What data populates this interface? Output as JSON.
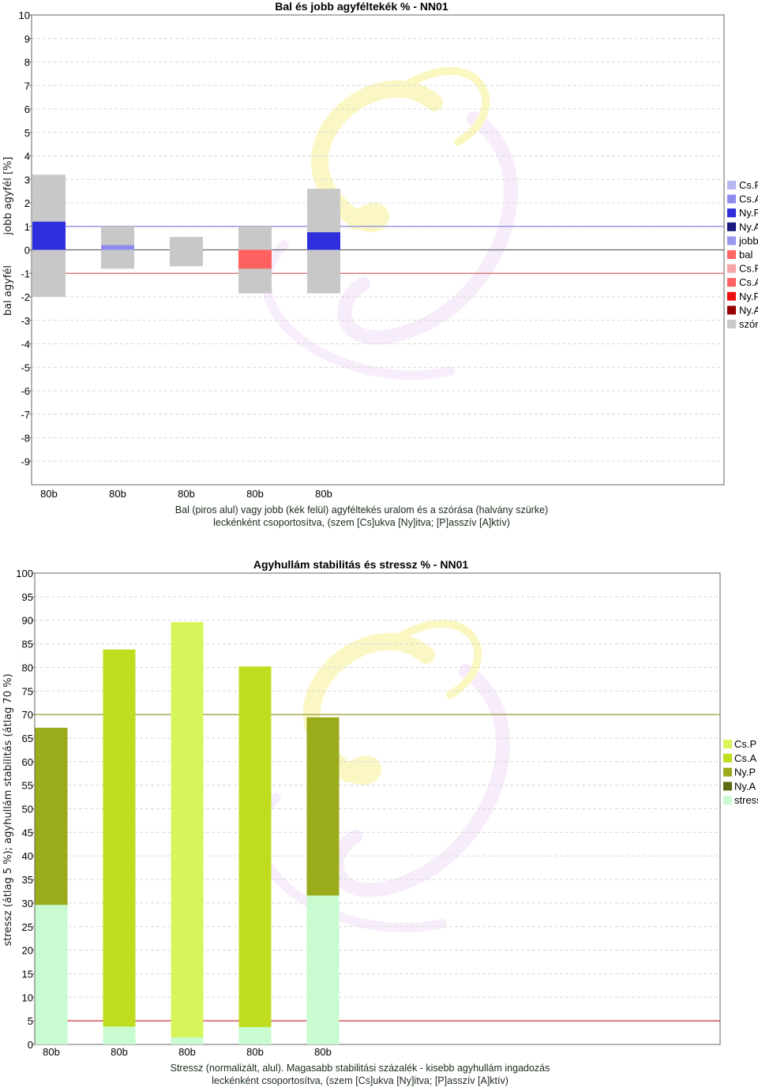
{
  "chart_data": [
    {
      "type": "bar",
      "title": "Bal és jobb agyféltekék % - NN01",
      "ylabel_top": "jobb agyfél [%]",
      "ylabel_bottom": "bal agyfél",
      "caption_line1": "Bal (piros alul) vagy jobb (kék felül) agyféltekés uralom és a szórása (halvány szürke)",
      "caption_line2": "leckénként csoportosítva, (szem [Cs]ukva [Ny]itva; [P]asszív [A]ktív)",
      "ylim": [
        -10,
        10
      ],
      "yticks": [
        10,
        9,
        8,
        7,
        6,
        5,
        4,
        3,
        2,
        1,
        0,
        -1,
        -2,
        -3,
        -4,
        -5,
        -6,
        -7,
        -8,
        -9
      ],
      "categories": [
        "80b",
        "80b",
        "80b",
        "80b",
        "80b"
      ],
      "reference_lines": [
        {
          "value": 1,
          "color": "#8888dd"
        },
        {
          "value": 0,
          "color": "#666666"
        },
        {
          "value": -1,
          "color": "#dd6666"
        }
      ],
      "spread": [
        {
          "low": -2.0,
          "high": 3.2
        },
        {
          "low": -0.8,
          "high": 1.0
        },
        {
          "low": -0.7,
          "high": 0.55
        },
        {
          "low": -1.85,
          "high": 1.0
        },
        {
          "low": -1.85,
          "high": 2.6
        }
      ],
      "values": [
        {
          "value": 1.2,
          "series": "Ny.P"
        },
        {
          "value": 0.2,
          "series": "Cs.A"
        },
        {
          "value": 0.0,
          "series": "Cs.P"
        },
        {
          "value": -0.8,
          "series": "Cs.A"
        },
        {
          "value": 0.75,
          "series": "Ny.P"
        }
      ],
      "legend": [
        {
          "label": "Cs.P",
          "color": "#b8b8f0"
        },
        {
          "label": "Cs.A",
          "color": "#8c8cee"
        },
        {
          "label": "Ny.P",
          "color": "#2f2fdd"
        },
        {
          "label": "Ny.A",
          "color": "#1a1a80"
        },
        {
          "label": "jobb",
          "color": "#9999ee"
        },
        {
          "label": "bal",
          "color": "#ff6666"
        },
        {
          "label": "Cs.P",
          "color": "#f4a6a6"
        },
        {
          "label": "Cs.A",
          "color": "#ff6060"
        },
        {
          "label": "Ny.P",
          "color": "#ee1111"
        },
        {
          "label": "Ny.A",
          "color": "#990000"
        },
        {
          "label": "szór",
          "color": "#c8c8c8"
        }
      ],
      "legend_position": "right",
      "grid": true
    },
    {
      "type": "bar",
      "title": "Agyhullám stabilitás és stressz % - NN01",
      "ylabel": "stressz (átlag 5 %); agyhullám stabilitás (átlag 70 %)",
      "caption_line1": "Stressz (normalizált, alul). Magasabb stabilitási százalék - kisebb agyhullám ingadozás",
      "caption_line2": "leckénként csoportosítva, (szem [Cs]ukva [Ny]itva; [P]asszív [A]ktív)",
      "ylim": [
        0,
        100
      ],
      "yticks": [
        100,
        95,
        90,
        85,
        80,
        75,
        70,
        65,
        60,
        55,
        50,
        45,
        40,
        35,
        30,
        25,
        20,
        15,
        10,
        5,
        0
      ],
      "categories": [
        "80b",
        "80b",
        "80b",
        "80b",
        "80b"
      ],
      "reference_lines": [
        {
          "value": 70,
          "color": "#999933"
        },
        {
          "value": 5,
          "color": "#cc3333"
        }
      ],
      "stability": [
        {
          "value": 67.2,
          "series": "Ny.P"
        },
        {
          "value": 83.8,
          "series": "Cs.A"
        },
        {
          "value": 89.6,
          "series": "Cs.P"
        },
        {
          "value": 80.2,
          "series": "Cs.A"
        },
        {
          "value": 69.4,
          "series": "Ny.P"
        }
      ],
      "stress": [
        29.6,
        3.8,
        1.5,
        3.7,
        31.6
      ],
      "legend": [
        {
          "label": "Cs.P",
          "color": "#d6f55a"
        },
        {
          "label": "Cs.A",
          "color": "#bfdc1e"
        },
        {
          "label": "Ny.P",
          "color": "#9aab1c"
        },
        {
          "label": "Ny.A",
          "color": "#5b6b12"
        },
        {
          "label": "stress",
          "color": "#c8fcd0"
        }
      ],
      "legend_position": "right",
      "grid": true
    }
  ]
}
